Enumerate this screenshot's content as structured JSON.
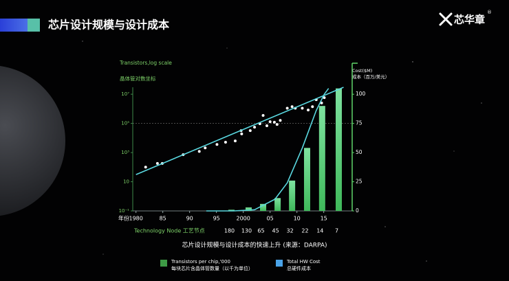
{
  "header": {
    "title": "芯片设计规模与设计成本",
    "logo": "芯华章",
    "logo_mark": "®"
  },
  "chart_data": {
    "type": "combo",
    "title": "芯片设计规模与设计成本的快速上升 (来源：DARPA)",
    "y_label": "Transistors,log scale",
    "y_label_cn": "晶体管对数坐标",
    "y2_label": "Cost($M)",
    "y2_label_cn": "成本（百万/美元）",
    "x_label": "年份",
    "node_label": "Technology Node 工艺节点",
    "ylog": true,
    "xlim": [
      1979.4,
      2020.3
    ],
    "xticks": [
      1980,
      {
        "value": 1985,
        "label": "85"
      },
      {
        "value": 1990,
        "label": "90"
      },
      {
        "value": 1995,
        "label": "95"
      },
      2000,
      {
        "value": 2005,
        "label": "05"
      },
      {
        "value": 2010,
        "label": "10"
      },
      {
        "value": 2015,
        "label": "15"
      }
    ],
    "ylim": [
      0.1,
      30000000
    ],
    "yticks": [
      {
        "value": 10000000,
        "label": "10⁷"
      },
      {
        "value": 100000,
        "label": "10⁵"
      },
      {
        "value": 1000,
        "label": "10³"
      },
      10,
      {
        "value": 0.1,
        "label": "10⁻¹"
      }
    ],
    "y2lim": [
      0,
      106
    ],
    "y2ticks": [
      0,
      25,
      50,
      75,
      100
    ],
    "y2_reference": 75,
    "series": [
      {
        "name": "Transistors per chip,'000",
        "name_cn": "每块芯片含晶体管数量（以千为单位）",
        "type": "scatter",
        "color": "#3d9a45",
        "x": [
          1981.8,
          1984.0,
          1984.9,
          1988.8,
          1991.8,
          1992.9,
          1995.1,
          1996.7,
          1998.5,
          1999.6,
          1999.7,
          2001.3,
          2002.1,
          2003.1,
          2003.7,
          2004.4,
          2005.0,
          2005.8,
          2006.3,
          2006.9,
          2008.2,
          2009.1,
          2009.7,
          2011.0,
          2012.1,
          2012.9,
          2013.6,
          2014.6,
          2015.1
        ],
        "values": [
          100,
          180,
          180,
          720,
          1200,
          2100,
          3600,
          5100,
          6300,
          32000,
          19000,
          32000,
          55000,
          95000,
          350000,
          69000,
          130000,
          120000,
          85000,
          160000,
          1100000,
          1400000,
          1100000,
          1100000,
          830000,
          1400000,
          4200000,
          2500000,
          5800000
        ]
      },
      {
        "name": "Total HW Cost",
        "name_cn": "总硬件成本",
        "type": "bar",
        "axis": "y2",
        "color": "#4aa3e8",
        "categories": [
          "180",
          "130",
          "65",
          "45",
          "32",
          "22",
          "14",
          "7"
        ],
        "x": [
          1997.8,
          2001.0,
          2003.7,
          2006.4,
          2009.1,
          2011.9,
          2014.7,
          2017.8
        ],
        "values": [
          1,
          3,
          6,
          11,
          26,
          54,
          90,
          105
        ]
      },
      {
        "type": "line",
        "color": "#5ad8e0",
        "x": [
          1980,
          2018.7
        ],
        "values": [
          31,
          30000000
        ]
      },
      {
        "type": "line",
        "axis": "y2",
        "color": "#5ad8e0",
        "x": [
          1993.1,
          1998.2,
          2002.1,
          2005.9,
          2008.2,
          2011.0,
          2013.6,
          2015.1,
          2015.9
        ],
        "values": [
          0,
          0,
          1,
          10,
          24,
          54,
          86,
          100,
          105
        ]
      }
    ]
  }
}
